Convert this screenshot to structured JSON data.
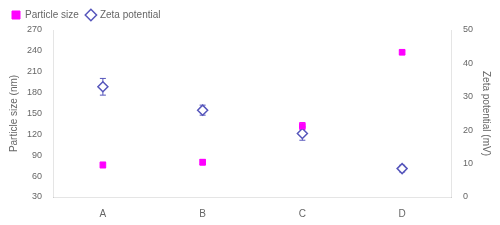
{
  "chart_data": {
    "type": "scatter",
    "categories": [
      "A",
      "B",
      "C",
      "D"
    ],
    "series": [
      {
        "name": "Particle size",
        "color": "#ff00ff",
        "marker": "square",
        "values": [
          76,
          80,
          132,
          238
        ],
        "errors": [
          4,
          4,
          5,
          3
        ]
      },
      {
        "name": "Zeta potential",
        "color": "#5555bb",
        "marker": "diamond",
        "axis": "y2",
        "values": [
          33,
          26,
          19,
          8.5
        ],
        "errors": [
          2.5,
          1.5,
          2.0,
          1.0
        ]
      }
    ],
    "ylabel": "Particle size (nm)",
    "y2label": "Zeta potential (mV)",
    "ylim": [
      30,
      270
    ],
    "yticks": [
      30,
      60,
      90,
      120,
      150,
      180,
      210,
      240,
      270
    ],
    "y2lim": [
      0,
      50
    ],
    "y2ticks": [
      0,
      10,
      20,
      30,
      40,
      50
    ],
    "legend": "upper left",
    "grid": false
  }
}
